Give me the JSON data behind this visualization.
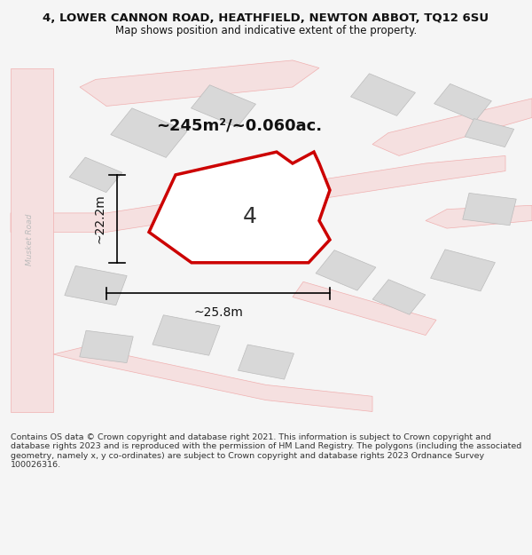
{
  "title_line1": "4, LOWER CANNON ROAD, HEATHFIELD, NEWTON ABBOT, TQ12 6SU",
  "title_line2": "Map shows position and indicative extent of the property.",
  "area_label": "~245m²/~0.060ac.",
  "width_label": "~25.8m",
  "height_label": "~22.2m",
  "plot_number": "4",
  "footer": "Contains OS data © Crown copyright and database right 2021. This information is subject to Crown copyright and database rights 2023 and is reproduced with the permission of HM Land Registry. The polygons (including the associated geometry, namely x, y co-ordinates) are subject to Crown copyright and database rights 2023 Ordnance Survey 100026316.",
  "bg_color": "#f5f5f5",
  "map_bg": "#ffffff",
  "building_color": "#d8d8d8",
  "road_color": "#e8c8c8",
  "road_outline": "#f0b0b0",
  "plot_outline_color": "#cc0000",
  "plot_fill": "#ffffff",
  "dim_line_color": "#000000",
  "road_label_color": "#aaaaaa",
  "footer_color": "#333333",
  "title_color": "#111111"
}
